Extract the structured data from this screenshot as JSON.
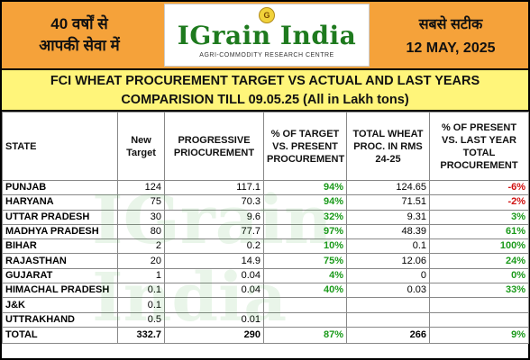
{
  "header": {
    "left_line1": "40 वर्षों से",
    "left_line2": "आपकी सेवा में",
    "logo_name": "IGrain India",
    "logo_tagline": "AGRI-COMMODITY RESEARCH CENTRE",
    "logo_emblem": "G",
    "right_line1": "सबसे सटीक",
    "date": "12 MAY, 2025"
  },
  "title": {
    "line1": "FCI WHEAT PROCUREMENT TARGET VS ACTUAL AND LAST YEARS",
    "line2": "COMPARISION TILL 09.05.25 (All in Lakh tons)"
  },
  "watermark": "IGrain India",
  "columns": {
    "state": "STATE",
    "target": "New Target",
    "progressive": "PROGRESSIVE PRIOCUREMENT",
    "pct_target": "% OF TARGET VS. PRESENT PROCUREMENT",
    "total_rms": "TOTAL WHEAT PROC. IN RMS 24-25",
    "pct_last": "% OF PRESENT VS. LAST YEAR TOTAL PROCUREMENT"
  },
  "rows": [
    {
      "state": "PUNJAB",
      "target": "124",
      "progressive": "117.1",
      "pct_target": "94%",
      "total_rms": "124.65",
      "pct_last": "-6%"
    },
    {
      "state": "HARYANA",
      "target": "75",
      "progressive": "70.3",
      "pct_target": "94%",
      "total_rms": "71.51",
      "pct_last": "-2%"
    },
    {
      "state": "UTTAR PRADESH",
      "target": "30",
      "progressive": "9.6",
      "pct_target": "32%",
      "total_rms": "9.31",
      "pct_last": "3%"
    },
    {
      "state": "MADHYA PRADESH",
      "target": "80",
      "progressive": "77.7",
      "pct_target": "97%",
      "total_rms": "48.39",
      "pct_last": "61%"
    },
    {
      "state": "BIHAR",
      "target": "2",
      "progressive": "0.2",
      "pct_target": "10%",
      "total_rms": "0.1",
      "pct_last": "100%"
    },
    {
      "state": "RAJASTHAN",
      "target": "20",
      "progressive": "14.9",
      "pct_target": "75%",
      "total_rms": "12.06",
      "pct_last": "24%"
    },
    {
      "state": "GUJARAT",
      "target": "1",
      "progressive": "0.04",
      "pct_target": "4%",
      "total_rms": "0",
      "pct_last": "0%"
    },
    {
      "state": "HIMACHAL PRADESH",
      "target": "0.1",
      "progressive": "0.04",
      "pct_target": "40%",
      "total_rms": "0.03",
      "pct_last": "33%"
    },
    {
      "state": "J&K",
      "target": "0.1",
      "progressive": "",
      "pct_target": "",
      "total_rms": "",
      "pct_last": ""
    },
    {
      "state": "UTTRAKHAND",
      "target": "0.5",
      "progressive": "0.01",
      "pct_target": "",
      "total_rms": "",
      "pct_last": ""
    }
  ],
  "total": {
    "state": "TOTAL",
    "target": "332.7",
    "progressive": "290",
    "pct_target": "87%",
    "total_rms": "266",
    "pct_last": "9%"
  },
  "colors": {
    "header_bg": "#f5a23a",
    "title_bg": "#fff57a",
    "positive": "#1a9a1a",
    "negative": "#d01010",
    "logo_green": "#1e7a1e"
  }
}
